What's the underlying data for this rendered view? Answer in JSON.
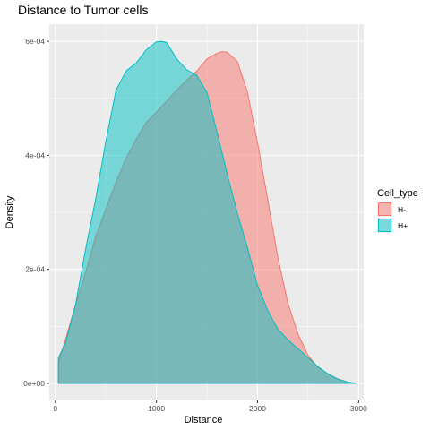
{
  "chart_data": {
    "type": "area",
    "title": "Distance to Tumor cells",
    "xlabel": "Distance",
    "ylabel": "Density",
    "xlim": [
      -60,
      3050
    ],
    "ylim": [
      -3e-05,
      0.00063
    ],
    "x_ticks": [
      0,
      1000,
      2000,
      3000
    ],
    "x_tick_labels": [
      "0",
      "1000",
      "2000",
      "3000"
    ],
    "y_ticks": [
      0,
      0.0002,
      0.0004,
      0.0006
    ],
    "y_tick_labels": [
      "0e+00",
      "2e-04",
      "4e-04",
      "6e-04"
    ],
    "grid": true,
    "legend": {
      "title": "Cell_type",
      "position": "right"
    },
    "series": [
      {
        "name": "H-",
        "color": "#F8766D",
        "x": [
          30,
          100,
          200,
          300,
          400,
          500,
          600,
          700,
          800,
          900,
          1000,
          1100,
          1200,
          1300,
          1400,
          1500,
          1600,
          1650,
          1700,
          1800,
          1900,
          2000,
          2100,
          2200,
          2300,
          2400,
          2500,
          2600,
          2700,
          2800,
          2900,
          2970
        ],
        "y": [
          3.5e-05,
          7.68e-05,
          0.000138,
          0.000195,
          0.000258,
          0.000306,
          0.000353,
          0.000395,
          0.000428,
          0.000458,
          0.000476,
          0.000495,
          0.000514,
          0.000532,
          0.000548,
          0.000569,
          0.000579,
          0.000582,
          0.000581,
          0.000565,
          0.000511,
          0.000422,
          0.000323,
          0.000222,
          0.000141,
          8.65e-05,
          4.91e-05,
          2.73e-05,
          1.63e-05,
          7.5e-06,
          1.8e-06,
          4e-07
        ]
      },
      {
        "name": "H+",
        "color": "#00BFC4",
        "x": [
          30,
          100,
          200,
          300,
          400,
          500,
          600,
          700,
          800,
          900,
          1000,
          1050,
          1100,
          1200,
          1300,
          1400,
          1500,
          1600,
          1700,
          1800,
          1900,
          2000,
          2100,
          2200,
          2300,
          2400,
          2500,
          2600,
          2700,
          2800,
          2900,
          2970
        ],
        "y": [
          4.48e-05,
          7.03e-05,
          0.000138,
          0.000236,
          0.000324,
          0.000425,
          0.000514,
          0.000548,
          0.000562,
          0.000585,
          0.000599,
          0.0006,
          0.000598,
          0.000569,
          0.00055,
          0.00054,
          0.00051,
          0.00044,
          0.000367,
          0.000299,
          0.000238,
          0.000172,
          0.000128,
          9.53e-05,
          7.65e-05,
          6.08e-05,
          4.51e-05,
          2.87e-05,
          1.63e-05,
          6.9e-06,
          1.8e-06,
          4e-07
        ]
      }
    ]
  }
}
